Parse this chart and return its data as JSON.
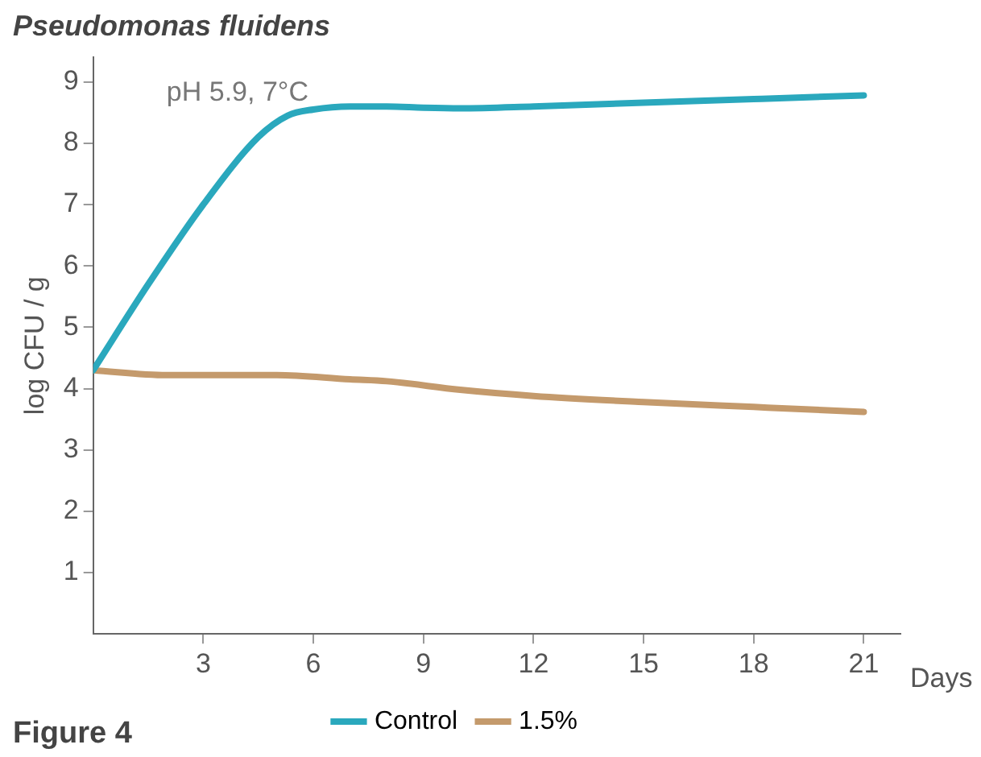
{
  "chart_data": {
    "type": "line",
    "title": "Pseudomonas fluidens",
    "xlabel": "Days",
    "ylabel": "log CFU / g",
    "annotations": [
      "pH 5.9, 7°C",
      "Figure 4"
    ],
    "xlim": [
      0,
      22
    ],
    "xticks": [
      3,
      6,
      9,
      12,
      15,
      18,
      21
    ],
    "ylim": [
      0,
      9.4
    ],
    "yticks": [
      1,
      2,
      3,
      4,
      5,
      6,
      7,
      8,
      9
    ],
    "grid": false,
    "legend": "bottom",
    "marker": "none",
    "line_style": "solid",
    "series": [
      {
        "name": "Control",
        "color": "#2aa8bd",
        "x": [
          0,
          1.5,
          3,
          4.5,
          5.3,
          6,
          7,
          8,
          9,
          10,
          12,
          15,
          18,
          21
        ],
        "values": [
          4.3,
          5.7,
          7.0,
          8.1,
          8.45,
          8.55,
          8.6,
          8.6,
          8.58,
          8.57,
          8.6,
          8.66,
          8.72,
          8.78
        ]
      },
      {
        "name": "1.5%",
        "color": "#c49a6c",
        "x": [
          0,
          2,
          5,
          7,
          8,
          10,
          12,
          15,
          18,
          21
        ],
        "values": [
          4.3,
          4.22,
          4.22,
          4.15,
          4.12,
          3.98,
          3.88,
          3.78,
          3.7,
          3.62
        ]
      }
    ]
  }
}
